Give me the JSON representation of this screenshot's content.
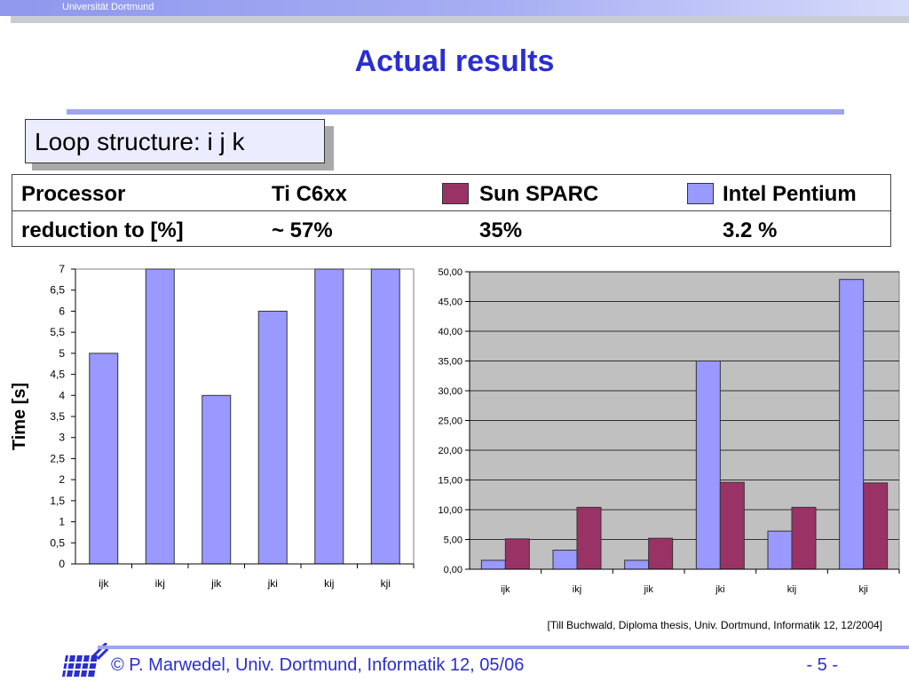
{
  "header": {
    "university": "Universität Dortmund"
  },
  "title": "Actual results",
  "loop_box": "Loop structure: i j k",
  "processor_table": {
    "row1": [
      "Processor",
      "Ti C6xx",
      "Sun SPARC",
      "Intel Pentium"
    ],
    "row2": [
      "reduction to [%]",
      "~ 57%",
      "35%",
      "3.2 %"
    ],
    "colors": {
      "sparc": "#993366",
      "pentium": "#9999ff"
    }
  },
  "chart_data": [
    {
      "type": "bar",
      "categories": [
        "ijk",
        "ikj",
        "jik",
        "jki",
        "kij",
        "kji"
      ],
      "series": [
        {
          "values": [
            5,
            7,
            4,
            6,
            7,
            7
          ]
        }
      ],
      "ylabel": "Time [s]",
      "ylim": [
        0,
        7
      ],
      "yticks": [
        "0",
        "0,5",
        "1",
        "1,5",
        "2",
        "2,5",
        "3",
        "3,5",
        "4",
        "4,5",
        "5",
        "5,5",
        "6",
        "6,5",
        "7"
      ],
      "grid": false
    },
    {
      "type": "bar",
      "categories": [
        "ijk",
        "ikj",
        "jik",
        "jki",
        "kij",
        "kji"
      ],
      "series": [
        {
          "values": [
            1.5,
            3.2,
            1.5,
            35.0,
            6.4,
            48.7
          ],
          "color": "#9999ff"
        },
        {
          "values": [
            5.1,
            10.4,
            5.2,
            14.6,
            10.4,
            14.5
          ],
          "color": "#993366"
        }
      ],
      "ylim": [
        0,
        50
      ],
      "yticks": [
        "0,00",
        "5,00",
        "10,00",
        "15,00",
        "20,00",
        "25,00",
        "30,00",
        "35,00",
        "40,00",
        "45,00",
        "50,00"
      ],
      "background": "#c0c0c0",
      "grid": true
    }
  ],
  "source": "[Till Buchwald, Diploma thesis, Univ. Dortmund, Informatik 12, 12/2004]",
  "footer": {
    "copyright": "© P. Marwedel, Univ. Dortmund, Informatik 12, 05/06",
    "page": "-  5 -"
  }
}
